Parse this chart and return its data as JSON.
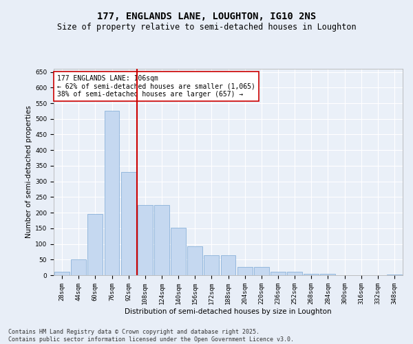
{
  "title": "177, ENGLANDS LANE, LOUGHTON, IG10 2NS",
  "subtitle": "Size of property relative to semi-detached houses in Loughton",
  "xlabel": "Distribution of semi-detached houses by size in Loughton",
  "ylabel": "Number of semi-detached properties",
  "categories": [
    "28sqm",
    "44sqm",
    "60sqm",
    "76sqm",
    "92sqm",
    "108sqm",
    "124sqm",
    "140sqm",
    "156sqm",
    "172sqm",
    "188sqm",
    "204sqm",
    "220sqm",
    "236sqm",
    "252sqm",
    "268sqm",
    "284sqm",
    "300sqm",
    "316sqm",
    "332sqm",
    "348sqm"
  ],
  "values": [
    12,
    50,
    195,
    525,
    330,
    225,
    225,
    152,
    93,
    63,
    63,
    27,
    27,
    12,
    12,
    4,
    4,
    1,
    1,
    0,
    3
  ],
  "bar_color": "#c5d8f0",
  "bar_edge_color": "#7ba8d4",
  "vline_color": "#cc0000",
  "annotation_text": "177 ENGLANDS LANE: 106sqm\n← 62% of semi-detached houses are smaller (1,065)\n38% of semi-detached houses are larger (657) →",
  "annotation_box_color": "#ffffff",
  "annotation_box_edge_color": "#cc0000",
  "ylim": [
    0,
    660
  ],
  "yticks": [
    0,
    50,
    100,
    150,
    200,
    250,
    300,
    350,
    400,
    450,
    500,
    550,
    600,
    650
  ],
  "footer_text": "Contains HM Land Registry data © Crown copyright and database right 2025.\nContains public sector information licensed under the Open Government Licence v3.0.",
  "bg_color": "#e8eef7",
  "plot_bg_color": "#eaf0f8",
  "grid_color": "#ffffff",
  "title_fontsize": 10,
  "subtitle_fontsize": 8.5,
  "axis_label_fontsize": 7.5,
  "tick_fontsize": 6.5,
  "annotation_fontsize": 7,
  "footer_fontsize": 6
}
